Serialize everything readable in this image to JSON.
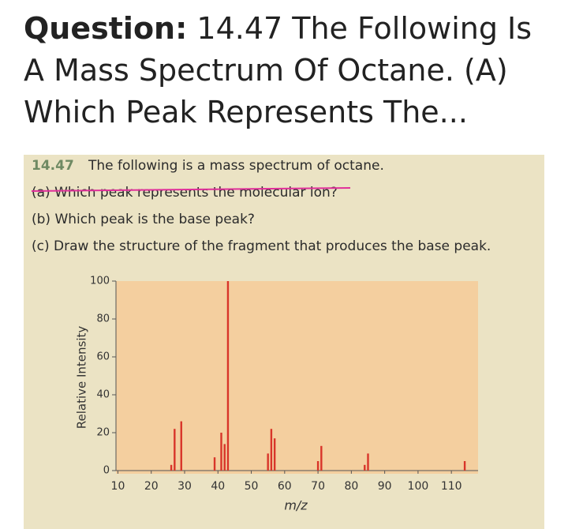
{
  "header": {
    "label": "Question:",
    "title": "14.47 The Following Is A Mass Spectrum Of Octane. (A) Which Peak Represents The..."
  },
  "problem": {
    "number": "14.47",
    "intro": "The following is a mass spectrum of octane.",
    "parts": [
      "(a) Which peak represents the molecular ion?",
      "(b) Which peak is the base peak?",
      "(c) Draw the structure of the fragment that produces the base peak."
    ]
  },
  "chart_data": {
    "type": "bar",
    "x": [
      26,
      27,
      29,
      39,
      41,
      42,
      43,
      55,
      56,
      57,
      70,
      71,
      84,
      85,
      114
    ],
    "values": [
      3,
      22,
      26,
      7,
      20,
      14,
      100,
      9,
      22,
      17,
      5,
      13,
      3,
      9,
      5
    ],
    "color": "#d8352a",
    "xlabel": "m/z",
    "ylabel": "Relative Intensity",
    "xlim": [
      8,
      118
    ],
    "xticks": [
      10,
      20,
      30,
      40,
      50,
      60,
      70,
      80,
      90,
      100,
      110
    ],
    "ylim": [
      0,
      100
    ],
    "yticks": [
      0,
      20,
      40,
      60,
      80,
      100
    ]
  }
}
